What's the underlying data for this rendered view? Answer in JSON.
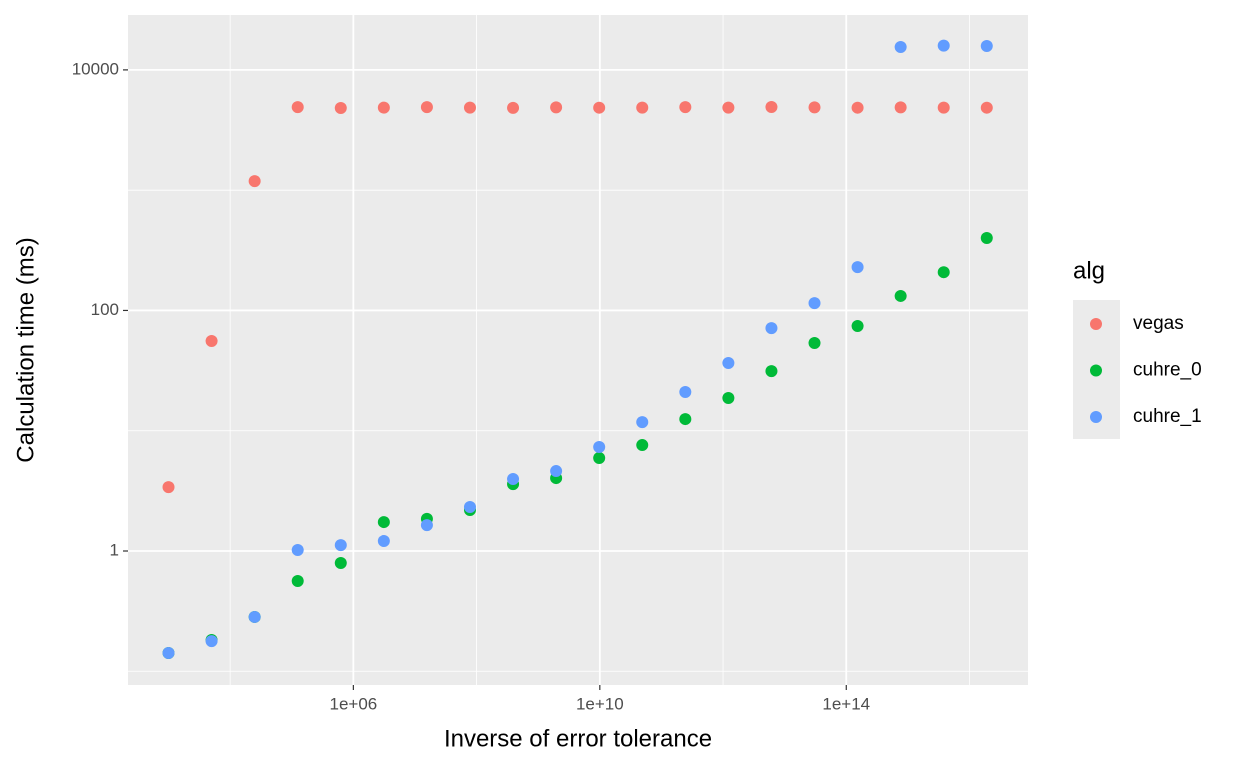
{
  "chart_data": {
    "type": "scatter",
    "x_label": "Inverse of error tolerance",
    "y_label": "Calculation time (ms)",
    "log_x": true,
    "log_y": true,
    "grid": true,
    "legend_title": "alg",
    "legend_position": "right",
    "xlim": [
      220,
      8.9e+16
    ],
    "ylim": [
      0.0769,
      28600
    ],
    "xticks": [
      {
        "value": 1000000,
        "label": "1e+06"
      },
      {
        "value": 10000000000,
        "label": "1e+10"
      },
      {
        "value": 100000000000000,
        "label": "1e+14"
      }
    ],
    "x_minor_ticks": [
      10000,
      100000000,
      1000000000000,
      10000000000000000
    ],
    "yticks": [
      1,
      100,
      10000
    ],
    "y_minor_ticks": [
      0.1,
      10,
      1000
    ],
    "x": [
      1000,
      5000,
      25000,
      125000,
      625000,
      3125000,
      15625000,
      78125000,
      390625000,
      1953125000,
      9765625000,
      48828125000,
      244140625000,
      1220703125000,
      6103515625000,
      30517578125000,
      152587890625000,
      762939453125000,
      3814697265625000,
      19073486328125000
    ],
    "series": [
      {
        "name": "vegas",
        "color": "#F8766D",
        "values": [
          3.4,
          55.7,
          1190,
          4900,
          4820,
          4860,
          4900,
          4860,
          4830,
          4880,
          4850,
          4860,
          4900,
          4860,
          4910,
          4880,
          4850,
          4880,
          4860,
          4850
        ]
      },
      {
        "name": "cuhre_0",
        "color": "#00BA38",
        "values": [
          0.142,
          0.182,
          0.283,
          0.563,
          0.795,
          1.74,
          1.85,
          2.19,
          3.6,
          4.04,
          5.93,
          7.6,
          12.5,
          18.7,
          31.3,
          53.6,
          74.2,
          132,
          208,
          400
        ]
      },
      {
        "name": "cuhre_1",
        "color": "#619CFF",
        "values": [
          0.142,
          0.178,
          0.283,
          1.02,
          1.12,
          1.21,
          1.64,
          2.32,
          3.97,
          4.62,
          7.33,
          11.8,
          21.0,
          36.6,
          71.3,
          115,
          229,
          15500,
          15900,
          15800
        ]
      }
    ]
  }
}
